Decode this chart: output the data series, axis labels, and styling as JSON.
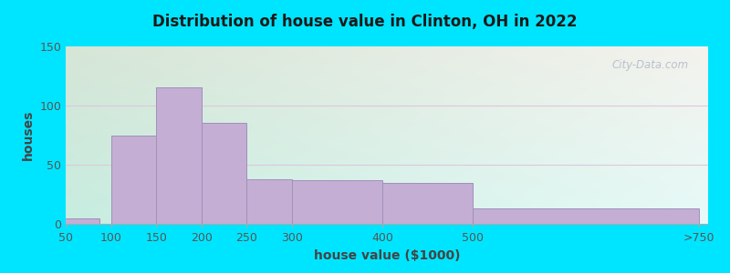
{
  "title": "Distribution of house value in Clinton, OH in 2022",
  "xlabel": "house value ($1000)",
  "ylabel": "houses",
  "bar_color": "#c4aed4",
  "bar_edge_color": "#a090bb",
  "outer_bg": "#00e5ff",
  "ylim": [
    0,
    150
  ],
  "yticks": [
    0,
    50,
    100,
    150
  ],
  "bar_centers": [
    62.5,
    125,
    175,
    225,
    275,
    350,
    450,
    625
  ],
  "bar_widths": [
    50,
    50,
    50,
    50,
    50,
    100,
    100,
    250
  ],
  "bar_heights": [
    5,
    75,
    115,
    85,
    38,
    37,
    35,
    13
  ],
  "xtick_positions": [
    50,
    100,
    150,
    200,
    250,
    300,
    400,
    500,
    750
  ],
  "xtick_labels": [
    "50",
    "100",
    "150",
    "200",
    "250",
    "300",
    "400",
    "500",
    ">750"
  ],
  "xlim": [
    50,
    760
  ],
  "watermark": "City-Data.com",
  "grid_color": "#e8d8e8",
  "bg_colors_left": "#c8ede0",
  "bg_colors_right": "#eaf5f0",
  "bg_colors_top": "#f5faf8"
}
